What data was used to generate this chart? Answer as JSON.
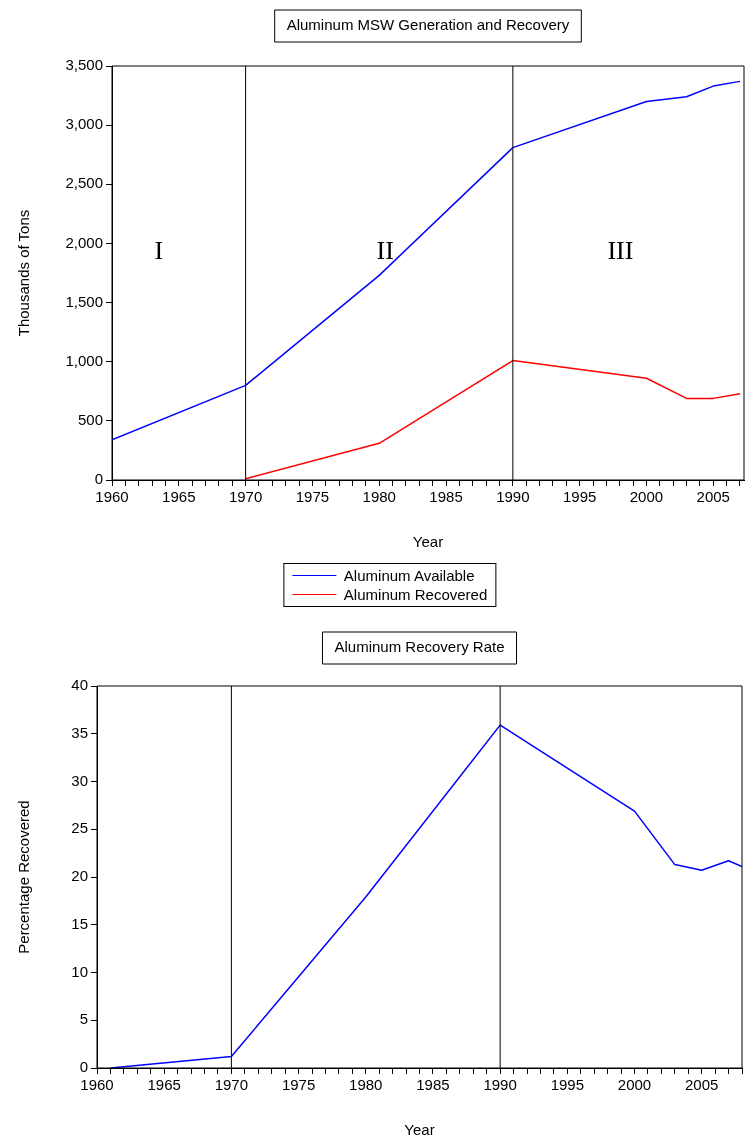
{
  "chart_data": [
    {
      "type": "line",
      "title": "Aluminum MSW Generation and Recovery",
      "xlabel": "Year",
      "ylabel": "Thousands of Tons",
      "x": [
        1960,
        1970,
        1980,
        1990,
        2000,
        2003,
        2005,
        2007
      ],
      "series": [
        {
          "name": "Aluminum Available",
          "color": "#0000ff",
          "values": [
            340,
            800,
            1730,
            2810,
            3200,
            3240,
            3330,
            3370
          ]
        },
        {
          "name": "Aluminum Recovered",
          "color": "#ff0000",
          "values": [
            null,
            10,
            310,
            1010,
            860,
            690,
            690,
            730
          ]
        }
      ],
      "xlim": [
        1960,
        2007.3
      ],
      "ylim": [
        0,
        3500
      ],
      "xticks": [
        1960,
        {
          "value": 1961,
          "label": null
        },
        {
          "value": 1962,
          "label": null
        },
        {
          "value": 1963,
          "label": null
        },
        {
          "value": 1964,
          "label": null
        },
        1965,
        {
          "value": 1966,
          "label": null
        },
        {
          "value": 1967,
          "label": null
        },
        {
          "value": 1968,
          "label": null
        },
        {
          "value": 1969,
          "label": null
        },
        1970,
        {
          "value": 1971,
          "label": null
        },
        {
          "value": 1972,
          "label": null
        },
        {
          "value": 1973,
          "label": null
        },
        {
          "value": 1974,
          "label": null
        },
        1975,
        {
          "value": 1976,
          "label": null
        },
        {
          "value": 1977,
          "label": null
        },
        {
          "value": 1978,
          "label": null
        },
        {
          "value": 1979,
          "label": null
        },
        1980,
        {
          "value": 1981,
          "label": null
        },
        {
          "value": 1982,
          "label": null
        },
        {
          "value": 1983,
          "label": null
        },
        {
          "value": 1984,
          "label": null
        },
        1985,
        {
          "value": 1986,
          "label": null
        },
        {
          "value": 1987,
          "label": null
        },
        {
          "value": 1988,
          "label": null
        },
        {
          "value": 1989,
          "label": null
        },
        1990,
        {
          "value": 1991,
          "label": null
        },
        {
          "value": 1992,
          "label": null
        },
        {
          "value": 1993,
          "label": null
        },
        {
          "value": 1994,
          "label": null
        },
        1995,
        {
          "value": 1996,
          "label": null
        },
        {
          "value": 1997,
          "label": null
        },
        {
          "value": 1998,
          "label": null
        },
        {
          "value": 1999,
          "label": null
        },
        2000,
        {
          "value": 2001,
          "label": null
        },
        {
          "value": 2002,
          "label": null
        },
        {
          "value": 2003,
          "label": null
        },
        {
          "value": 2004,
          "label": null
        },
        2005,
        {
          "value": 2006,
          "label": null
        },
        {
          "value": 2007,
          "label": null
        }
      ],
      "yticks": [
        0,
        500,
        {
          "value": 1000,
          "label": "1,000"
        },
        {
          "value": 1500,
          "label": "1,500"
        },
        {
          "value": 2000,
          "label": "2,000"
        },
        {
          "value": 2500,
          "label": "2,500"
        },
        {
          "value": 3000,
          "label": "3,000"
        },
        {
          "value": 3500,
          "label": "3,500"
        }
      ],
      "ref_lines": [
        {
          "axis": "x",
          "value": 1970,
          "color": "#000000"
        },
        {
          "axis": "x",
          "value": 1990,
          "color": "#000000"
        }
      ],
      "annotations": [
        "I",
        "II",
        "III"
      ],
      "grid": false,
      "legend": "bottom",
      "marker": "none",
      "line_style": "solid"
    },
    {
      "type": "line",
      "title": "Aluminum Recovery Rate",
      "xlabel": "Year",
      "ylabel": "Percentage Recovered",
      "x": [
        1961,
        1970,
        1980,
        1990,
        2000,
        2003,
        2005,
        2007,
        2008
      ],
      "series": [
        {
          "color": "#0000ff",
          "values": [
            0,
            1.2,
            17.9,
            35.9,
            26.9,
            21.3,
            20.7,
            21.7,
            21.1
          ]
        }
      ],
      "xlim": [
        1960,
        2008
      ],
      "ylim": [
        0,
        40
      ],
      "xticks": [
        1960,
        {
          "value": 1961,
          "label": null
        },
        {
          "value": 1962,
          "label": null
        },
        {
          "value": 1963,
          "label": null
        },
        {
          "value": 1964,
          "label": null
        },
        1965,
        {
          "value": 1966,
          "label": null
        },
        {
          "value": 1967,
          "label": null
        },
        {
          "value": 1968,
          "label": null
        },
        {
          "value": 1969,
          "label": null
        },
        1970,
        {
          "value": 1971,
          "label": null
        },
        {
          "value": 1972,
          "label": null
        },
        {
          "value": 1973,
          "label": null
        },
        {
          "value": 1974,
          "label": null
        },
        1975,
        {
          "value": 1976,
          "label": null
        },
        {
          "value": 1977,
          "label": null
        },
        {
          "value": 1978,
          "label": null
        },
        {
          "value": 1979,
          "label": null
        },
        1980,
        {
          "value": 1981,
          "label": null
        },
        {
          "value": 1982,
          "label": null
        },
        {
          "value": 1983,
          "label": null
        },
        {
          "value": 1984,
          "label": null
        },
        1985,
        {
          "value": 1986,
          "label": null
        },
        {
          "value": 1987,
          "label": null
        },
        {
          "value": 1988,
          "label": null
        },
        {
          "value": 1989,
          "label": null
        },
        1990,
        {
          "value": 1991,
          "label": null
        },
        {
          "value": 1992,
          "label": null
        },
        {
          "value": 1993,
          "label": null
        },
        {
          "value": 1994,
          "label": null
        },
        1995,
        {
          "value": 1996,
          "label": null
        },
        {
          "value": 1997,
          "label": null
        },
        {
          "value": 1998,
          "label": null
        },
        {
          "value": 1999,
          "label": null
        },
        2000,
        {
          "value": 2001,
          "label": null
        },
        {
          "value": 2002,
          "label": null
        },
        {
          "value": 2003,
          "label": null
        },
        {
          "value": 2004,
          "label": null
        },
        2005,
        {
          "value": 2006,
          "label": null
        },
        {
          "value": 2007,
          "label": null
        },
        {
          "value": 2008,
          "label": null
        }
      ],
      "yticks": [
        0,
        5,
        10,
        15,
        20,
        25,
        30,
        35,
        40
      ],
      "ref_lines": [
        {
          "axis": "x",
          "value": 1970,
          "color": "#000000"
        },
        {
          "axis": "x",
          "value": 1990,
          "color": "#000000"
        }
      ],
      "grid": false,
      "marker": "none",
      "line_style": "solid"
    }
  ]
}
